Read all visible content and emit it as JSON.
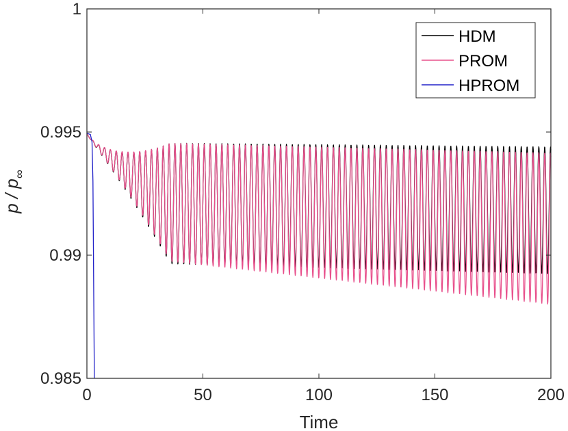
{
  "chart_data": {
    "type": "line",
    "xlabel": "Time",
    "ylabel_main": "p / p",
    "ylabel_sub": "∞",
    "xlim": [
      0,
      200
    ],
    "ylim": [
      0.985,
      1.0
    ],
    "xticks": [
      0,
      50,
      100,
      150,
      200
    ],
    "xtick_labels": [
      "0",
      "50",
      "100",
      "150",
      "200"
    ],
    "yticks": [
      0.985,
      0.99,
      0.995,
      1.0
    ],
    "ytick_labels": [
      "0.985",
      "0.99",
      "0.995",
      "1"
    ],
    "grid": false,
    "legend_position": "top-right",
    "series": [
      {
        "name": "HDM",
        "color": "#000000",
        "model": {
          "start_value": 0.99495,
          "settle_time": 36,
          "period": 2.53,
          "upper_envelope_start": 0.99455,
          "upper_envelope_end": 0.9944,
          "lower_envelope_start": 0.98965,
          "lower_envelope_end": 0.98925,
          "end_time": 200
        }
      },
      {
        "name": "PROM",
        "color": "#e8508c",
        "model": {
          "start_value": 0.99495,
          "settle_time": 36,
          "period": 2.53,
          "upper_envelope_start": 0.99455,
          "upper_envelope_end": 0.99415,
          "lower_envelope_start": 0.98975,
          "lower_envelope_end": 0.988,
          "end_time": 200
        }
      },
      {
        "name": "HPROM",
        "color": "#2020c8",
        "x": [
          0,
          1.5,
          2.2,
          2.6,
          2.9,
          3.2
        ],
        "y": [
          0.99495,
          0.9949,
          0.9946,
          0.993,
          0.989,
          0.985
        ]
      }
    ]
  }
}
